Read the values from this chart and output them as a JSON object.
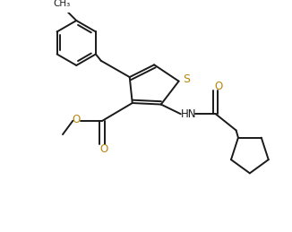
{
  "bg_color": "#ffffff",
  "line_color": "#1a1a1a",
  "s_color": "#b8860b",
  "o_color": "#b8860b",
  "line_width": 1.4,
  "figsize": [
    3.26,
    2.59
  ],
  "dpi": 100,
  "xlim": [
    0,
    10
  ],
  "ylim": [
    0,
    8
  ]
}
